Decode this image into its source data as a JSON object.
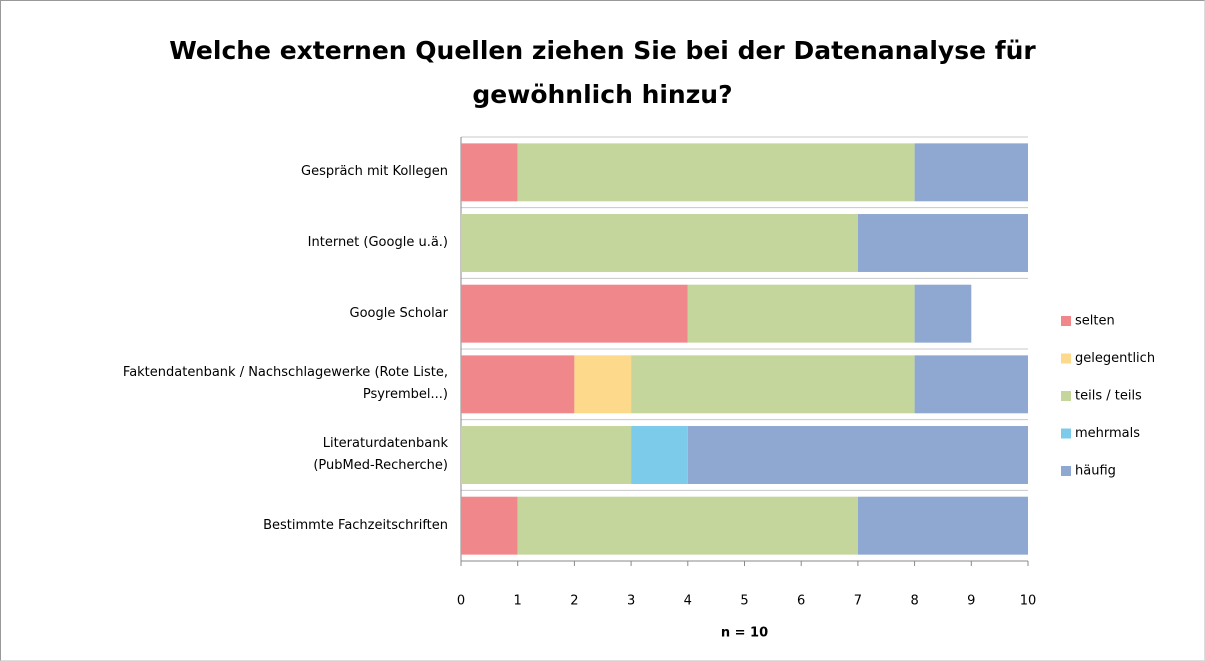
{
  "chart_data": {
    "type": "stacked_barh",
    "title": "Welche externen Quellen ziehen Sie bei der Datenanalyse für\ngewöhnlich hinzu?",
    "xlabel": "n = 10",
    "categories": [
      "Gespräch mit Kollegen",
      "Internet (Google u.ä.)",
      "Google Scholar",
      "Faktendatenbank / Nachschlagewerke (Rote Liste,\nPsyrembel...)",
      "Literaturdatenbank\n(PubMed-Recherche)",
      "Bestimmte Fachzeitschriften"
    ],
    "series": [
      {
        "name": "selten",
        "color": "#f0878b",
        "values": [
          1,
          0,
          4,
          2,
          0,
          1
        ]
      },
      {
        "name": "gelegentlich",
        "color": "#fdd98b",
        "values": [
          0,
          0,
          0,
          1,
          0,
          0
        ]
      },
      {
        "name": "teils / teils",
        "color": "#c4d69b",
        "values": [
          7,
          7,
          4,
          5,
          3,
          6
        ]
      },
      {
        "name": "mehrmals",
        "color": "#7ccbea",
        "values": [
          0,
          0,
          0,
          0,
          1,
          0
        ]
      },
      {
        "name": "häufig",
        "color": "#8ea8d1",
        "values": [
          2,
          3,
          1,
          2,
          6,
          3
        ]
      }
    ],
    "xlim": [
      0,
      10
    ],
    "xticks": [
      0,
      1,
      2,
      3,
      4,
      5,
      6,
      7,
      8,
      9,
      10
    ],
    "legend": "right",
    "grid": true
  }
}
